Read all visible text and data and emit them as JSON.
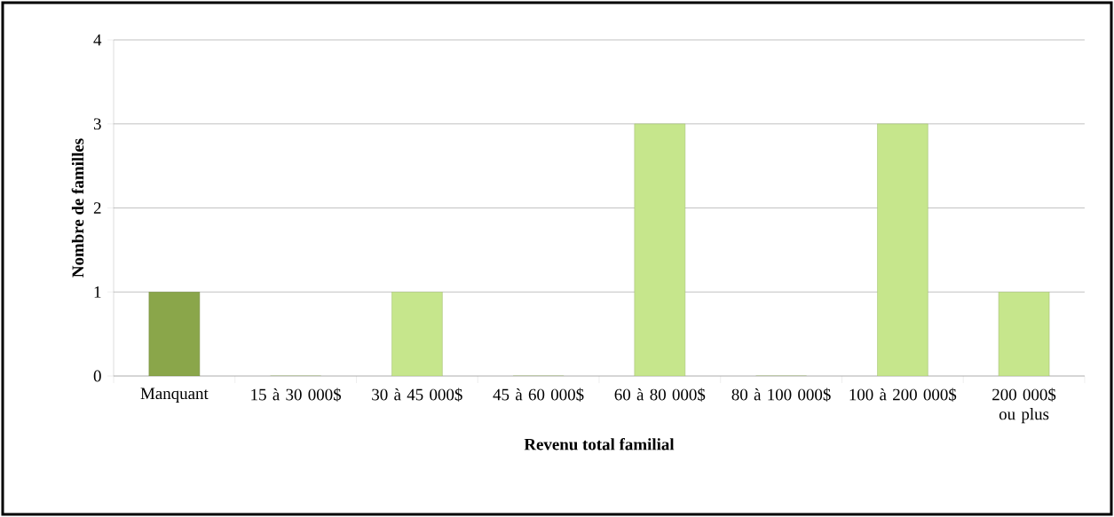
{
  "chart_data": {
    "type": "bar",
    "xlabel": "Revenu total familial",
    "ylabel": "Nombre de familles",
    "categories": [
      "Manquant",
      "15 à 30 000$",
      "30 à 45 000$",
      "45 à 60 000$",
      "60 à 80 000$",
      "80 à 100 000$",
      "100 à 200 000$",
      "200 000$ ou plus"
    ],
    "values": [
      1,
      0,
      1,
      0,
      3,
      0,
      3,
      1
    ],
    "colors": [
      "#8aa64a",
      "#c6e68c",
      "#c6e68c",
      "#c6e68c",
      "#c6e68c",
      "#c6e68c",
      "#c6e68c",
      "#c6e68c"
    ],
    "ylim": [
      0,
      4
    ],
    "yticks": [
      0,
      1,
      2,
      3,
      4
    ],
    "grid": "y"
  }
}
